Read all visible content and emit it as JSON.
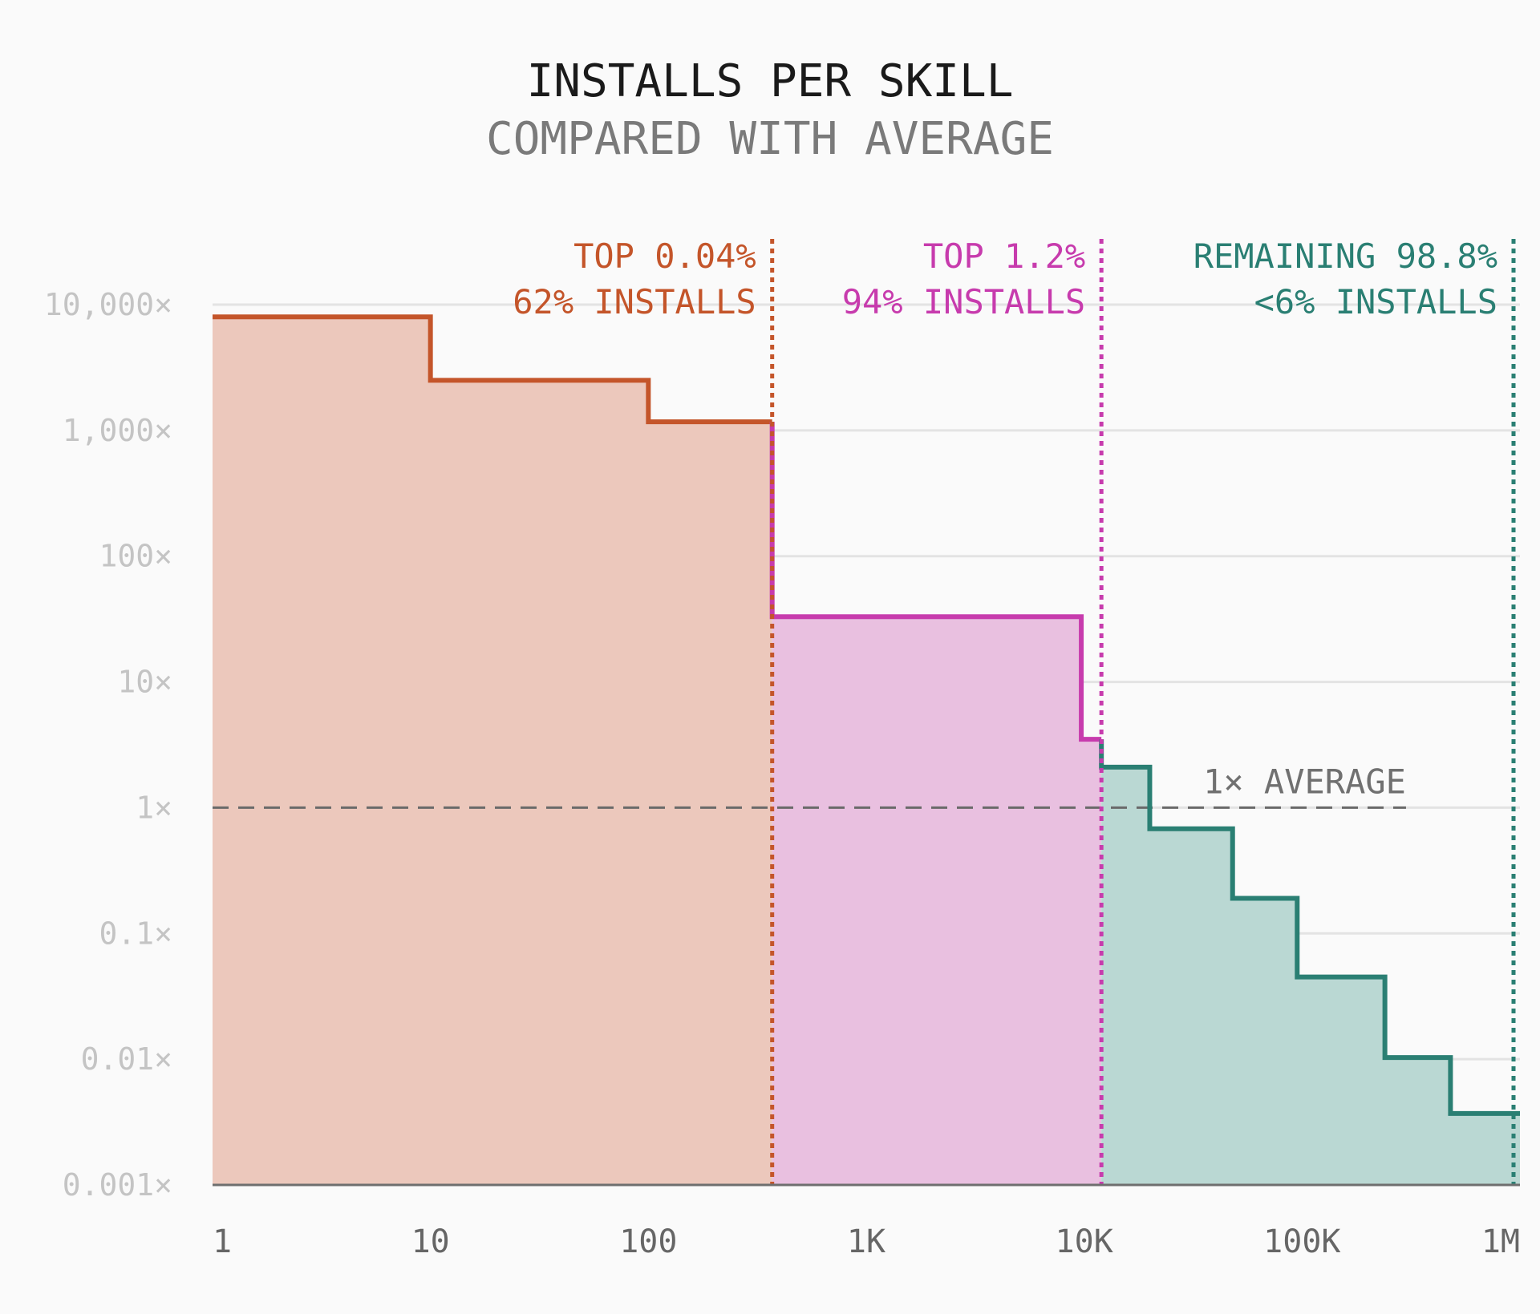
{
  "chart_data": {
    "type": "area",
    "title": "INSTALLS PER SKILL",
    "subtitle": "COMPARED WITH AVERAGE",
    "xlabel": "",
    "ylabel": "",
    "x_scale": "log",
    "y_scale": "log",
    "xlim": [
      1,
      1000000
    ],
    "ylim": [
      0.001,
      10000
    ],
    "x_ticks": [
      {
        "value": 1,
        "label": "1"
      },
      {
        "value": 10,
        "label": "10"
      },
      {
        "value": 100,
        "label": "100"
      },
      {
        "value": 1000,
        "label": "1K"
      },
      {
        "value": 10000,
        "label": "10K"
      },
      {
        "value": 100000,
        "label": "100K"
      },
      {
        "value": 1000000,
        "label": "1M"
      }
    ],
    "y_ticks": [
      {
        "value": 10000,
        "label": "10,000×"
      },
      {
        "value": 1000,
        "label": "1,000×"
      },
      {
        "value": 100,
        "label": "100×"
      },
      {
        "value": 10,
        "label": "10×"
      },
      {
        "value": 1,
        "label": "1×"
      },
      {
        "value": 0.1,
        "label": "0.1×"
      },
      {
        "value": 0.01,
        "label": "0.01×"
      },
      {
        "value": 0.001,
        "label": "0.001×"
      }
    ],
    "grid": "horizontal",
    "series": [
      {
        "color": "#c4552a",
        "fill": "#ecc8bc",
        "steps": [
          {
            "x0": 1,
            "x1": 10,
            "y": 8000
          },
          {
            "x0": 10,
            "x1": 100,
            "y": 2500
          },
          {
            "x0": 100,
            "x1": 370,
            "y": 1170
          }
        ]
      },
      {
        "color": "#c73bad",
        "fill": "#e9c0e0",
        "steps": [
          {
            "x0": 370,
            "x1": 9700,
            "y": 33
          },
          {
            "x0": 9700,
            "x1": 12000,
            "y": 3.5
          }
        ]
      },
      {
        "color": "#2a7f73",
        "fill": "#bad8d3",
        "steps": [
          {
            "x0": 12000,
            "x1": 20000,
            "y": 2.1
          },
          {
            "x0": 20000,
            "x1": 48000,
            "y": 0.68
          },
          {
            "x0": 48000,
            "x1": 95000,
            "y": 0.19
          },
          {
            "x0": 95000,
            "x1": 240000,
            "y": 0.045
          },
          {
            "x0": 240000,
            "x1": 480000,
            "y": 0.0103
          },
          {
            "x0": 480000,
            "x1": 1000000,
            "y": 0.0037
          }
        ]
      }
    ],
    "reference_line": {
      "y": 1,
      "label": "1× AVERAGE",
      "x_end": 300000
    },
    "annotations": [
      {
        "x": 370,
        "line1": "TOP 0.04%",
        "line2": "62% INSTALLS",
        "color": "#c4552a"
      },
      {
        "x": 12000,
        "line1": "TOP 1.2%",
        "line2": "94% INSTALLS",
        "color": "#c73bad"
      },
      {
        "x": 1000000,
        "line1": "REMAINING 98.8%",
        "line2": "<6% INSTALLS",
        "color": "#2a7f73"
      }
    ]
  }
}
